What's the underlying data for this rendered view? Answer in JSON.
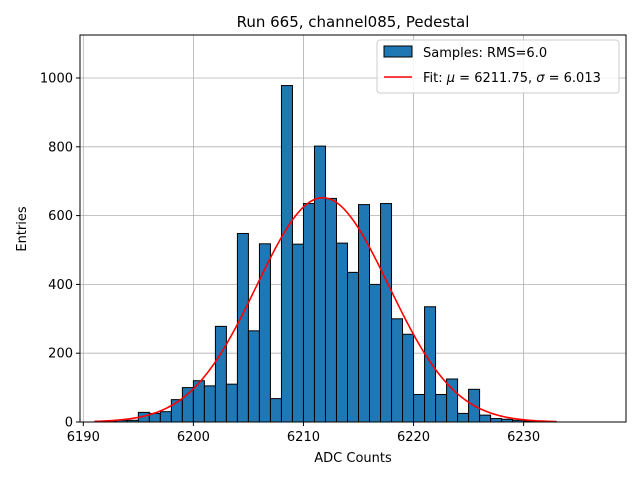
{
  "chart_data": {
    "type": "bar",
    "title": "Run 665, channel085, Pedestal",
    "xlabel": "ADC Counts",
    "ylabel": "Entries",
    "xlim": [
      6189.7,
      6239.3
    ],
    "ylim": [
      0,
      1125
    ],
    "xticks": [
      6190,
      6200,
      6210,
      6220,
      6230
    ],
    "yticks": [
      0,
      200,
      400,
      600,
      800,
      1000
    ],
    "grid": true,
    "legend_position": "top-right",
    "bin_width": 1,
    "bin_edges_start": 6191,
    "values": [
      0,
      3,
      5,
      5,
      28,
      25,
      30,
      65,
      100,
      120,
      105,
      278,
      110,
      548,
      265,
      518,
      68,
      978,
      517,
      635,
      802,
      650,
      520,
      435,
      632,
      400,
      635,
      300,
      255,
      80,
      335,
      80,
      125,
      25,
      95,
      20,
      10,
      8,
      5,
      3,
      1,
      0
    ],
    "series": [
      {
        "name": "Samples: RMS=6.0",
        "kind": "histogram",
        "color": "#1f77b4"
      },
      {
        "name": "Fit: μ = 6211.75, σ = 6.013",
        "kind": "gaussian",
        "color": "#ff0000",
        "mu": 6211.75,
        "sigma": 6.013,
        "amplitude": 652,
        "x_range": [
          6191,
          6233
        ]
      }
    ]
  },
  "legend": {
    "samples_label": "Samples: RMS=6.0",
    "fit_prefix": "Fit: ",
    "fit_mu_symbol": "μ",
    "fit_mu_text": " = 6211.75, ",
    "fit_sigma_symbol": "σ",
    "fit_sigma_text": " = 6.013"
  }
}
